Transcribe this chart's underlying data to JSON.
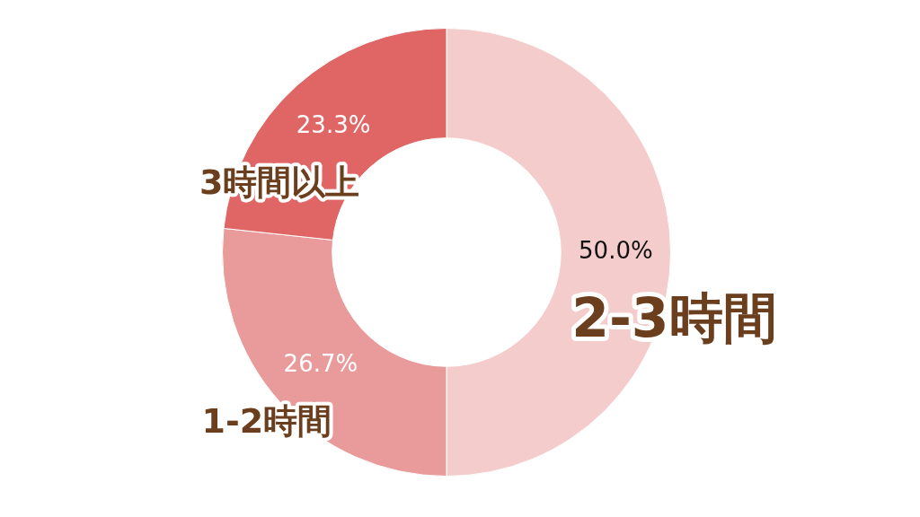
{
  "chart_data": {
    "type": "donut",
    "categories": [
      "2-3時間",
      "1-2時間",
      "3時間以上"
    ],
    "values": [
      50.0,
      26.7,
      23.3
    ],
    "colors": [
      "#f4cccc",
      "#e99a9a",
      "#e06666"
    ],
    "value_labels": [
      "50.0%",
      "26.7%",
      "23.3%"
    ],
    "legend": false
  }
}
